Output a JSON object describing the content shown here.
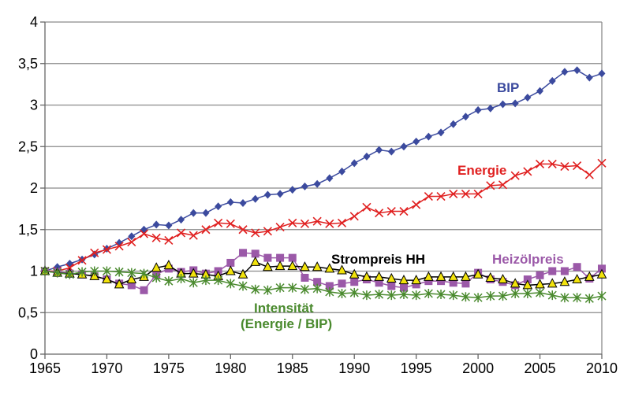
{
  "chart_data": {
    "type": "line",
    "title": "",
    "xlabel": "",
    "ylabel": "",
    "xlim": [
      1965,
      2010
    ],
    "ylim": [
      0,
      4
    ],
    "grid": true,
    "x_ticks": [
      "1965",
      "1970",
      "1975",
      "1980",
      "1985",
      "1990",
      "1995",
      "2000",
      "2005",
      "2010"
    ],
    "y_ticks": [
      "0",
      "0,5",
      "1",
      "1,5",
      "2",
      "2,5",
      "3",
      "3,5",
      "4"
    ],
    "x": [
      1965,
      1966,
      1967,
      1968,
      1969,
      1970,
      1971,
      1972,
      1973,
      1974,
      1975,
      1976,
      1977,
      1978,
      1979,
      1980,
      1981,
      1982,
      1983,
      1984,
      1985,
      1986,
      1987,
      1988,
      1989,
      1990,
      1991,
      1992,
      1993,
      1994,
      1995,
      1996,
      1997,
      1998,
      1999,
      2000,
      2001,
      2002,
      2003,
      2004,
      2005,
      2006,
      2007,
      2008,
      2009,
      2010
    ],
    "series": [
      {
        "name": "BIP",
        "label": "BIP",
        "color": "#3b4a9e",
        "marker": "diamond",
        "values": [
          1.0,
          1.05,
          1.09,
          1.14,
          1.2,
          1.27,
          1.34,
          1.42,
          1.5,
          1.56,
          1.55,
          1.62,
          1.7,
          1.7,
          1.78,
          1.83,
          1.82,
          1.87,
          1.92,
          1.93,
          1.98,
          2.02,
          2.05,
          2.12,
          2.2,
          2.3,
          2.38,
          2.46,
          2.44,
          2.5,
          2.56,
          2.62,
          2.67,
          2.77,
          2.86,
          2.94,
          2.96,
          3.01,
          3.02,
          3.09,
          3.17,
          3.29,
          3.4,
          3.42,
          3.33,
          3.38
        ]
      },
      {
        "name": "Energie",
        "label": "Energie",
        "color": "#e02020",
        "marker": "x",
        "values": [
          1.0,
          1.0,
          1.04,
          1.13,
          1.22,
          1.26,
          1.3,
          1.35,
          1.45,
          1.4,
          1.37,
          1.46,
          1.43,
          1.5,
          1.58,
          1.57,
          1.5,
          1.46,
          1.48,
          1.53,
          1.58,
          1.57,
          1.6,
          1.57,
          1.58,
          1.66,
          1.77,
          1.7,
          1.72,
          1.72,
          1.8,
          1.9,
          1.9,
          1.93,
          1.93,
          1.93,
          2.03,
          2.04,
          2.15,
          2.2,
          2.29,
          2.29,
          2.26,
          2.27,
          2.16,
          2.3
        ]
      },
      {
        "name": "Heizölpreis",
        "label": "Heizölpreis",
        "color": "#9b59a8",
        "marker": "square",
        "values": [
          1.0,
          0.99,
          0.97,
          0.96,
          0.94,
          0.9,
          0.85,
          0.83,
          0.77,
          0.96,
          1.03,
          0.99,
          1.01,
          0.97,
          1.0,
          1.1,
          1.22,
          1.21,
          1.16,
          1.16,
          1.16,
          0.92,
          0.87,
          0.82,
          0.85,
          0.87,
          0.9,
          0.86,
          0.82,
          0.8,
          0.84,
          0.88,
          0.88,
          0.86,
          0.85,
          0.98,
          0.9,
          0.87,
          0.83,
          0.9,
          0.95,
          1.0,
          1.0,
          1.05,
          0.91,
          1.03
        ]
      },
      {
        "name": "Strompreis HH",
        "label": "Strompreis HH",
        "color": "#000000",
        "marker_fill": "#f2e30c",
        "marker": "triangle",
        "values": [
          1.0,
          0.98,
          0.97,
          0.96,
          0.94,
          0.9,
          0.84,
          0.9,
          0.93,
          1.04,
          1.07,
          0.97,
          0.97,
          0.96,
          0.94,
          1.0,
          0.96,
          1.11,
          1.05,
          1.06,
          1.06,
          1.05,
          1.05,
          1.03,
          1.01,
          0.96,
          0.93,
          0.93,
          0.91,
          0.89,
          0.89,
          0.93,
          0.93,
          0.93,
          0.93,
          0.96,
          0.92,
          0.9,
          0.85,
          0.83,
          0.84,
          0.85,
          0.87,
          0.9,
          0.93,
          0.96
        ]
      },
      {
        "name": "Intensität (Energie / BIP)",
        "label": "Intensität",
        "label2": "(Energie / BIP)",
        "color": "#4a8a2e",
        "marker": "asterisk",
        "values": [
          1.0,
          0.98,
          0.96,
          0.99,
          1.0,
          1.0,
          0.99,
          0.98,
          0.97,
          0.92,
          0.88,
          0.91,
          0.86,
          0.89,
          0.89,
          0.85,
          0.82,
          0.78,
          0.77,
          0.8,
          0.8,
          0.78,
          0.79,
          0.75,
          0.73,
          0.74,
          0.71,
          0.72,
          0.71,
          0.72,
          0.71,
          0.73,
          0.72,
          0.71,
          0.69,
          0.68,
          0.7,
          0.7,
          0.73,
          0.73,
          0.74,
          0.71,
          0.68,
          0.68,
          0.67,
          0.7
        ]
      }
    ]
  }
}
